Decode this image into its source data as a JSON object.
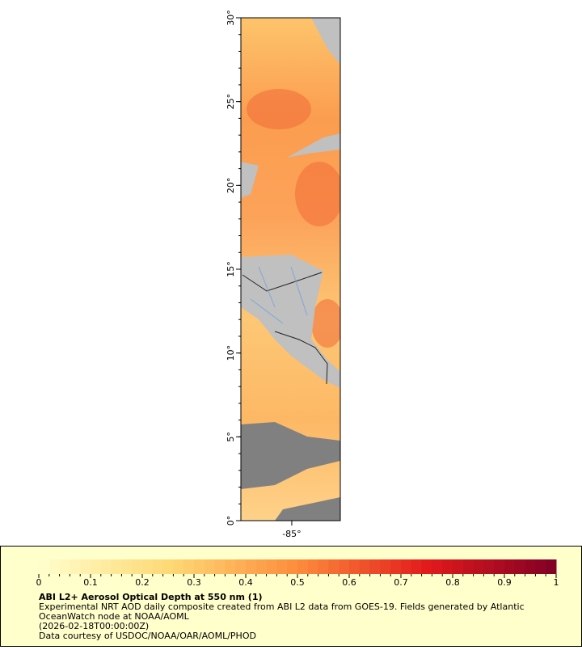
{
  "map": {
    "ylim": [
      0,
      30
    ],
    "yticks": [
      {
        "value": 0,
        "label": "0°"
      },
      {
        "value": 5,
        "label": "5°"
      },
      {
        "value": 10,
        "label": "10°"
      },
      {
        "value": 15,
        "label": "15°"
      },
      {
        "value": 20,
        "label": "20°"
      },
      {
        "value": 25,
        "label": "25°"
      },
      {
        "value": 30,
        "label": "30°"
      }
    ],
    "xlim": [
      -88.04,
      -82.1
    ],
    "xticks": [
      {
        "value": -85,
        "label": "-85°"
      }
    ]
  },
  "colorbar": {
    "lim": [
      0,
      1
    ],
    "ticks": [
      0,
      0.1,
      0.2,
      0.3,
      0.4,
      0.5,
      0.6,
      0.7,
      0.8,
      0.9,
      1
    ]
  },
  "legend": {
    "title": "ABI L2+ Aerosol Optical Depth at 550 nm (1)",
    "lines": [
      "Experimental NRT AOD daily composite created from ABI L2 data from GOES-19. Fields generated by Atlantic",
      "OceanWatch node at NOAA/AOML",
      "(2026-02-18T00:00:00Z)",
      "Data courtesy of USDOC/NOAA/OAR/AOML/PHOD"
    ]
  }
}
